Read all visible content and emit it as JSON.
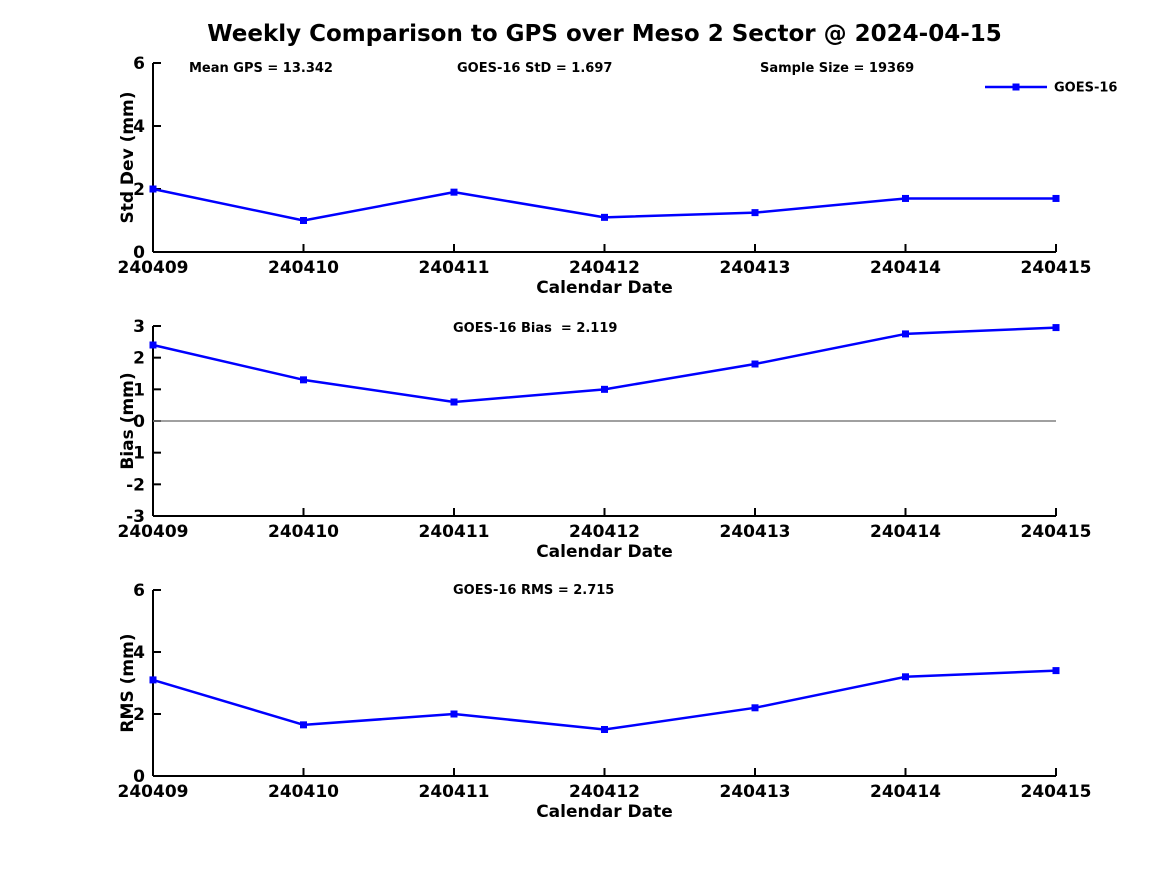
{
  "title": "Weekly Comparison to GPS over Meso 2 Sector @ 2024-04-15",
  "colors": {
    "series": "#0000ff",
    "zero_line": "#808080",
    "axis": "#000000",
    "background": "#ffffff"
  },
  "chart_data": [
    {
      "type": "line",
      "ylabel": "Std Dev (mm)",
      "xlabel": "Calendar Date",
      "ylim": [
        0,
        6
      ],
      "yticks": [
        0,
        2,
        4,
        6
      ],
      "x_ticklabels": [
        "240409",
        "240410",
        "240411",
        "240412",
        "240413",
        "240414",
        "240415"
      ],
      "annotations": [
        "Mean GPS = 13.342",
        "GOES-16 StD = 1.697",
        "Sample Size = 19369"
      ],
      "legend_position": "top-right",
      "grid": false,
      "series": [
        {
          "name": "GOES-16",
          "marker": "square",
          "values": [
            2.0,
            1.0,
            1.9,
            1.1,
            1.25,
            1.7,
            1.7
          ]
        }
      ]
    },
    {
      "type": "line",
      "ylabel": "Bias (mm)",
      "xlabel": "Calendar Date",
      "ylim": [
        -3,
        3
      ],
      "yticks": [
        -3,
        -2,
        -1,
        0,
        1,
        2,
        3
      ],
      "x_ticklabels": [
        "240409",
        "240410",
        "240411",
        "240412",
        "240413",
        "240414",
        "240415"
      ],
      "annotations": [
        "GOES-16 Bias  = 2.119"
      ],
      "zero_line": true,
      "grid": false,
      "series": [
        {
          "name": "GOES-16",
          "marker": "square",
          "values": [
            2.4,
            1.3,
            0.6,
            1.0,
            1.8,
            2.75,
            2.95
          ]
        }
      ]
    },
    {
      "type": "line",
      "ylabel": "RMS (mm)",
      "xlabel": "Calendar Date",
      "ylim": [
        0,
        6
      ],
      "yticks": [
        0,
        2,
        4,
        6
      ],
      "x_ticklabels": [
        "240409",
        "240410",
        "240411",
        "240412",
        "240413",
        "240414",
        "240415"
      ],
      "annotations": [
        "GOES-16 RMS = 2.715"
      ],
      "zero_line": false,
      "grid": false,
      "series": [
        {
          "name": "GOES-16",
          "marker": "square",
          "values": [
            3.1,
            1.65,
            2.0,
            1.5,
            2.2,
            3.2,
            3.4
          ]
        }
      ]
    }
  ]
}
